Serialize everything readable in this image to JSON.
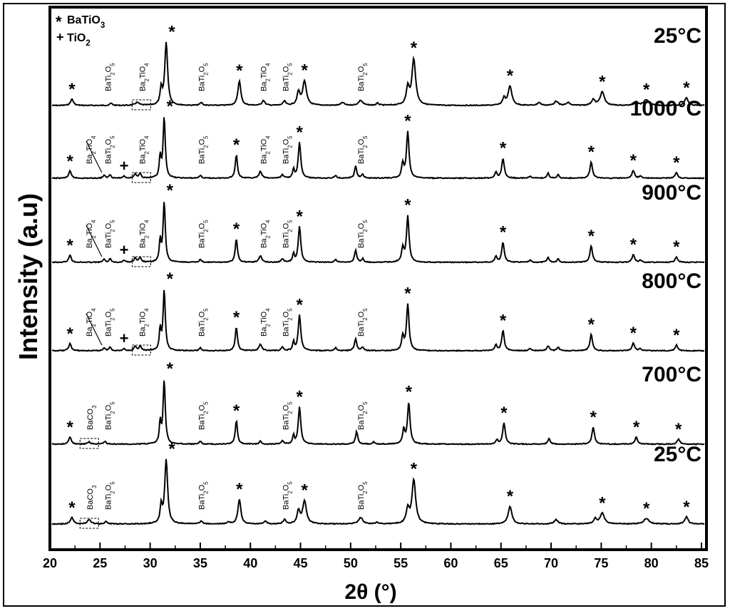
{
  "chart_data": {
    "type": "line",
    "xlabel": "2θ (°)",
    "ylabel": "Intensity (a.u)",
    "xlim": [
      20,
      85.5
    ],
    "x_ticks": [
      "20",
      "25",
      "30",
      "35",
      "40",
      "45",
      "50",
      "55",
      "60",
      "65",
      "70",
      "75",
      "80",
      "85"
    ],
    "legend": {
      "position": "top-left",
      "entries": [
        {
          "symbol": "*",
          "label": "BaTiO3"
        },
        {
          "symbol": "+",
          "label": "TiO2"
        }
      ]
    },
    "series": [
      {
        "name": "25°C",
        "peaks": [
          {
            "x": 22.2,
            "h": 0.09,
            "w": 0.17
          },
          {
            "x": 26.1,
            "h": 0.03,
            "w": 0.15
          },
          {
            "x": 28.7,
            "h": 0.04,
            "w": 0.25
          },
          {
            "x": 31.1,
            "h": 0.22,
            "w": 0.12
          },
          {
            "x": 31.6,
            "h": 0.88,
            "w": 0.17
          },
          {
            "x": 35.1,
            "h": 0.04,
            "w": 0.15
          },
          {
            "x": 38.9,
            "h": 0.35,
            "w": 0.17
          },
          {
            "x": 41.3,
            "h": 0.07,
            "w": 0.17
          },
          {
            "x": 43.4,
            "h": 0.06,
            "w": 0.15
          },
          {
            "x": 44.8,
            "h": 0.18,
            "w": 0.17
          },
          {
            "x": 45.4,
            "h": 0.34,
            "w": 0.22
          },
          {
            "x": 49.2,
            "h": 0.04,
            "w": 0.2
          },
          {
            "x": 51.0,
            "h": 0.07,
            "w": 0.25
          },
          {
            "x": 52.7,
            "h": 0.03,
            "w": 0.15
          },
          {
            "x": 55.7,
            "h": 0.24,
            "w": 0.17
          },
          {
            "x": 56.3,
            "h": 0.65,
            "w": 0.22
          },
          {
            "x": 65.3,
            "h": 0.1,
            "w": 0.17
          },
          {
            "x": 65.9,
            "h": 0.27,
            "w": 0.22
          },
          {
            "x": 68.8,
            "h": 0.04,
            "w": 0.2
          },
          {
            "x": 70.5,
            "h": 0.06,
            "w": 0.22
          },
          {
            "x": 71.7,
            "h": 0.04,
            "w": 0.2
          },
          {
            "x": 74.2,
            "h": 0.08,
            "w": 0.2
          },
          {
            "x": 75.1,
            "h": 0.19,
            "w": 0.25
          },
          {
            "x": 78.5,
            "h": 0.05,
            "w": 0.2
          },
          {
            "x": 79.5,
            "h": 0.08,
            "w": 0.3
          },
          {
            "x": 83.5,
            "h": 0.11,
            "w": 0.2
          }
        ]
      },
      {
        "name": "1000°C",
        "peaks": [
          {
            "x": 22.0,
            "h": 0.1,
            "w": 0.15
          },
          {
            "x": 25.4,
            "h": 0.04,
            "w": 0.13
          },
          {
            "x": 26.0,
            "h": 0.05,
            "w": 0.13
          },
          {
            "x": 27.4,
            "h": 0.03,
            "w": 0.13
          },
          {
            "x": 28.5,
            "h": 0.06,
            "w": 0.13
          },
          {
            "x": 29.0,
            "h": 0.07,
            "w": 0.13
          },
          {
            "x": 31.0,
            "h": 0.3,
            "w": 0.1
          },
          {
            "x": 31.4,
            "h": 0.85,
            "w": 0.13
          },
          {
            "x": 35.0,
            "h": 0.04,
            "w": 0.13
          },
          {
            "x": 38.6,
            "h": 0.33,
            "w": 0.13
          },
          {
            "x": 41.0,
            "h": 0.09,
            "w": 0.17
          },
          {
            "x": 43.2,
            "h": 0.05,
            "w": 0.13
          },
          {
            "x": 44.3,
            "h": 0.12,
            "w": 0.1
          },
          {
            "x": 44.9,
            "h": 0.5,
            "w": 0.15
          },
          {
            "x": 48.5,
            "h": 0.04,
            "w": 0.13
          },
          {
            "x": 50.5,
            "h": 0.17,
            "w": 0.13
          },
          {
            "x": 51.2,
            "h": 0.05,
            "w": 0.13
          },
          {
            "x": 55.2,
            "h": 0.2,
            "w": 0.13
          },
          {
            "x": 55.7,
            "h": 0.65,
            "w": 0.15
          },
          {
            "x": 64.5,
            "h": 0.08,
            "w": 0.13
          },
          {
            "x": 65.2,
            "h": 0.28,
            "w": 0.15
          },
          {
            "x": 67.9,
            "h": 0.03,
            "w": 0.13
          },
          {
            "x": 69.7,
            "h": 0.07,
            "w": 0.13
          },
          {
            "x": 70.7,
            "h": 0.05,
            "w": 0.13
          },
          {
            "x": 74.0,
            "h": 0.23,
            "w": 0.15
          },
          {
            "x": 78.2,
            "h": 0.11,
            "w": 0.15
          },
          {
            "x": 78.9,
            "h": 0.03,
            "w": 0.13
          },
          {
            "x": 82.5,
            "h": 0.08,
            "w": 0.15
          }
        ]
      },
      {
        "name": "900°C",
        "peaks": [
          {
            "x": 22.0,
            "h": 0.1,
            "w": 0.15
          },
          {
            "x": 25.4,
            "h": 0.04,
            "w": 0.13
          },
          {
            "x": 26.0,
            "h": 0.05,
            "w": 0.13
          },
          {
            "x": 27.4,
            "h": 0.03,
            "w": 0.13
          },
          {
            "x": 28.5,
            "h": 0.06,
            "w": 0.13
          },
          {
            "x": 29.0,
            "h": 0.07,
            "w": 0.13
          },
          {
            "x": 31.0,
            "h": 0.3,
            "w": 0.1
          },
          {
            "x": 31.4,
            "h": 0.85,
            "w": 0.13
          },
          {
            "x": 35.0,
            "h": 0.04,
            "w": 0.13
          },
          {
            "x": 38.6,
            "h": 0.33,
            "w": 0.13
          },
          {
            "x": 41.0,
            "h": 0.09,
            "w": 0.17
          },
          {
            "x": 43.2,
            "h": 0.05,
            "w": 0.13
          },
          {
            "x": 44.3,
            "h": 0.12,
            "w": 0.1
          },
          {
            "x": 44.9,
            "h": 0.5,
            "w": 0.15
          },
          {
            "x": 48.5,
            "h": 0.04,
            "w": 0.13
          },
          {
            "x": 50.5,
            "h": 0.17,
            "w": 0.13
          },
          {
            "x": 51.2,
            "h": 0.05,
            "w": 0.13
          },
          {
            "x": 55.2,
            "h": 0.2,
            "w": 0.13
          },
          {
            "x": 55.7,
            "h": 0.65,
            "w": 0.15
          },
          {
            "x": 64.5,
            "h": 0.08,
            "w": 0.13
          },
          {
            "x": 65.2,
            "h": 0.28,
            "w": 0.15
          },
          {
            "x": 67.9,
            "h": 0.03,
            "w": 0.13
          },
          {
            "x": 69.7,
            "h": 0.07,
            "w": 0.13
          },
          {
            "x": 70.7,
            "h": 0.05,
            "w": 0.13
          },
          {
            "x": 74.0,
            "h": 0.23,
            "w": 0.15
          },
          {
            "x": 78.2,
            "h": 0.11,
            "w": 0.15
          },
          {
            "x": 78.9,
            "h": 0.03,
            "w": 0.13
          },
          {
            "x": 82.5,
            "h": 0.08,
            "w": 0.15
          }
        ]
      },
      {
        "name": "800°C",
        "peaks": [
          {
            "x": 22.0,
            "h": 0.1,
            "w": 0.15
          },
          {
            "x": 25.4,
            "h": 0.04,
            "w": 0.13
          },
          {
            "x": 26.0,
            "h": 0.05,
            "w": 0.13
          },
          {
            "x": 27.4,
            "h": 0.03,
            "w": 0.13
          },
          {
            "x": 28.5,
            "h": 0.06,
            "w": 0.13
          },
          {
            "x": 29.0,
            "h": 0.07,
            "w": 0.13
          },
          {
            "x": 31.0,
            "h": 0.3,
            "w": 0.1
          },
          {
            "x": 31.4,
            "h": 0.85,
            "w": 0.13
          },
          {
            "x": 35.0,
            "h": 0.04,
            "w": 0.13
          },
          {
            "x": 38.6,
            "h": 0.33,
            "w": 0.13
          },
          {
            "x": 41.0,
            "h": 0.09,
            "w": 0.17
          },
          {
            "x": 43.2,
            "h": 0.05,
            "w": 0.13
          },
          {
            "x": 44.3,
            "h": 0.12,
            "w": 0.1
          },
          {
            "x": 44.9,
            "h": 0.5,
            "w": 0.15
          },
          {
            "x": 48.5,
            "h": 0.04,
            "w": 0.13
          },
          {
            "x": 50.5,
            "h": 0.17,
            "w": 0.13
          },
          {
            "x": 51.2,
            "h": 0.05,
            "w": 0.13
          },
          {
            "x": 55.2,
            "h": 0.2,
            "w": 0.13
          },
          {
            "x": 55.7,
            "h": 0.65,
            "w": 0.15
          },
          {
            "x": 64.5,
            "h": 0.08,
            "w": 0.13
          },
          {
            "x": 65.2,
            "h": 0.28,
            "w": 0.15
          },
          {
            "x": 67.9,
            "h": 0.03,
            "w": 0.13
          },
          {
            "x": 69.7,
            "h": 0.07,
            "w": 0.13
          },
          {
            "x": 70.7,
            "h": 0.05,
            "w": 0.13
          },
          {
            "x": 74.0,
            "h": 0.23,
            "w": 0.15
          },
          {
            "x": 78.2,
            "h": 0.11,
            "w": 0.15
          },
          {
            "x": 78.9,
            "h": 0.03,
            "w": 0.13
          },
          {
            "x": 82.5,
            "h": 0.08,
            "w": 0.15
          }
        ]
      },
      {
        "name": "700°C",
        "peaks": [
          {
            "x": 22.0,
            "h": 0.1,
            "w": 0.15
          },
          {
            "x": 23.9,
            "h": 0.03,
            "w": 0.17
          },
          {
            "x": 25.5,
            "h": 0.04,
            "w": 0.13
          },
          {
            "x": 31.0,
            "h": 0.3,
            "w": 0.1
          },
          {
            "x": 31.4,
            "h": 0.9,
            "w": 0.13
          },
          {
            "x": 35.0,
            "h": 0.04,
            "w": 0.13
          },
          {
            "x": 38.6,
            "h": 0.33,
            "w": 0.13
          },
          {
            "x": 41.0,
            "h": 0.04,
            "w": 0.13
          },
          {
            "x": 43.2,
            "h": 0.05,
            "w": 0.13
          },
          {
            "x": 44.3,
            "h": 0.12,
            "w": 0.1
          },
          {
            "x": 44.9,
            "h": 0.52,
            "w": 0.15
          },
          {
            "x": 50.6,
            "h": 0.18,
            "w": 0.13
          },
          {
            "x": 52.3,
            "h": 0.03,
            "w": 0.13
          },
          {
            "x": 55.3,
            "h": 0.2,
            "w": 0.13
          },
          {
            "x": 55.8,
            "h": 0.58,
            "w": 0.15
          },
          {
            "x": 64.6,
            "h": 0.06,
            "w": 0.13
          },
          {
            "x": 65.3,
            "h": 0.3,
            "w": 0.15
          },
          {
            "x": 69.8,
            "h": 0.08,
            "w": 0.13
          },
          {
            "x": 74.2,
            "h": 0.24,
            "w": 0.15
          },
          {
            "x": 78.5,
            "h": 0.1,
            "w": 0.15
          },
          {
            "x": 82.7,
            "h": 0.07,
            "w": 0.15
          }
        ]
      },
      {
        "name": "25°C",
        "peaks": [
          {
            "x": 22.2,
            "h": 0.09,
            "w": 0.17
          },
          {
            "x": 23.9,
            "h": 0.06,
            "w": 0.2
          },
          {
            "x": 25.6,
            "h": 0.04,
            "w": 0.15
          },
          {
            "x": 31.1,
            "h": 0.25,
            "w": 0.12
          },
          {
            "x": 31.6,
            "h": 0.9,
            "w": 0.17
          },
          {
            "x": 35.1,
            "h": 0.04,
            "w": 0.15
          },
          {
            "x": 37.8,
            "h": 0.03,
            "w": 0.15
          },
          {
            "x": 38.9,
            "h": 0.35,
            "w": 0.17
          },
          {
            "x": 41.5,
            "h": 0.04,
            "w": 0.15
          },
          {
            "x": 43.4,
            "h": 0.06,
            "w": 0.15
          },
          {
            "x": 44.8,
            "h": 0.18,
            "w": 0.17
          },
          {
            "x": 45.4,
            "h": 0.32,
            "w": 0.22
          },
          {
            "x": 51.0,
            "h": 0.09,
            "w": 0.25
          },
          {
            "x": 52.6,
            "h": 0.02,
            "w": 0.15
          },
          {
            "x": 55.7,
            "h": 0.2,
            "w": 0.17
          },
          {
            "x": 56.3,
            "h": 0.62,
            "w": 0.22
          },
          {
            "x": 65.9,
            "h": 0.25,
            "w": 0.22
          },
          {
            "x": 70.5,
            "h": 0.06,
            "w": 0.22
          },
          {
            "x": 74.4,
            "h": 0.07,
            "w": 0.2
          },
          {
            "x": 75.1,
            "h": 0.15,
            "w": 0.25
          },
          {
            "x": 79.5,
            "h": 0.08,
            "w": 0.3
          },
          {
            "x": 83.5,
            "h": 0.1,
            "w": 0.2
          }
        ]
      }
    ],
    "annotations": [
      [
        {
          "text": "BaTi2O5",
          "x": 25.8
        },
        {
          "text": "Ba2TiO4",
          "x": 29.2
        },
        {
          "text": "BaTi2O5",
          "x": 35.1
        },
        {
          "text": "Ba2TiO4",
          "x": 41.3
        },
        {
          "text": "BaTi2O5",
          "x": 43.5
        },
        {
          "text": "BaTi2O5",
          "x": 51.0
        }
      ],
      [
        {
          "text": "Ba2TiO4",
          "x": 23.9
        },
        {
          "text": "BaTi2O5",
          "x": 25.8
        },
        {
          "text": "Ba2TiO4",
          "x": 29.2
        },
        {
          "text": "BaTi2O5",
          "x": 35.1
        },
        {
          "text": "Ba2TiO4",
          "x": 41.3
        },
        {
          "text": "BaTi2O5",
          "x": 43.5
        },
        {
          "text": "BaTi2O5",
          "x": 51.0
        }
      ],
      [
        {
          "text": "Ba2TiO4",
          "x": 23.9
        },
        {
          "text": "BaTi2O5",
          "x": 25.8
        },
        {
          "text": "Ba2TiO4",
          "x": 29.2
        },
        {
          "text": "BaTi2O5",
          "x": 35.1
        },
        {
          "text": "Ba2TiO4",
          "x": 41.3
        },
        {
          "text": "BaTi2O5",
          "x": 43.5
        },
        {
          "text": "BaTi2O5",
          "x": 51.0
        }
      ],
      [
        {
          "text": "Ba2TiO4",
          "x": 23.9
        },
        {
          "text": "BaTi2O5",
          "x": 25.8
        },
        {
          "text": "Ba2TiO4",
          "x": 29.2
        },
        {
          "text": "BaTi2O5",
          "x": 35.1
        },
        {
          "text": "Ba2TiO4",
          "x": 41.3
        },
        {
          "text": "BaTi2O5",
          "x": 43.5
        },
        {
          "text": "BaTi2O5",
          "x": 51.0
        }
      ],
      [
        {
          "text": "BaCO3",
          "x": 24.0
        },
        {
          "text": "BaTi2O5",
          "x": 25.8
        },
        {
          "text": "BaTi2O5",
          "x": 35.1
        },
        {
          "text": "BaTi2O5",
          "x": 43.5
        },
        {
          "text": "BaTi2O5",
          "x": 51.0
        }
      ],
      [
        {
          "text": "BaCO3",
          "x": 24.0
        },
        {
          "text": "BaTi2O5",
          "x": 25.8
        },
        {
          "text": "BaTi2O5",
          "x": 35.1
        },
        {
          "text": "BaTi2O5",
          "x": 43.5
        },
        {
          "text": "BaTi2O5",
          "x": 51.0
        }
      ]
    ],
    "marker_star_x": [
      [
        22.2,
        31.6,
        38.9,
        45.4,
        56.3,
        65.9,
        75.1,
        79.5,
        83.5
      ],
      [
        22.0,
        31.4,
        38.6,
        44.9,
        55.7,
        65.2,
        74.0,
        78.2,
        82.5
      ],
      [
        22.0,
        31.4,
        38.6,
        44.9,
        55.7,
        65.2,
        74.0,
        78.2,
        82.5
      ],
      [
        22.0,
        31.4,
        38.6,
        44.9,
        55.7,
        65.2,
        74.0,
        78.2,
        82.5
      ],
      [
        22.0,
        31.4,
        38.6,
        44.9,
        55.8,
        65.3,
        74.2,
        78.5,
        82.7
      ],
      [
        22.2,
        31.6,
        38.9,
        45.4,
        56.3,
        65.9,
        75.1,
        79.5,
        83.5
      ]
    ],
    "marker_plus_x": [
      [],
      [
        27.4
      ],
      [
        27.4
      ],
      [
        27.4
      ],
      [],
      []
    ]
  }
}
